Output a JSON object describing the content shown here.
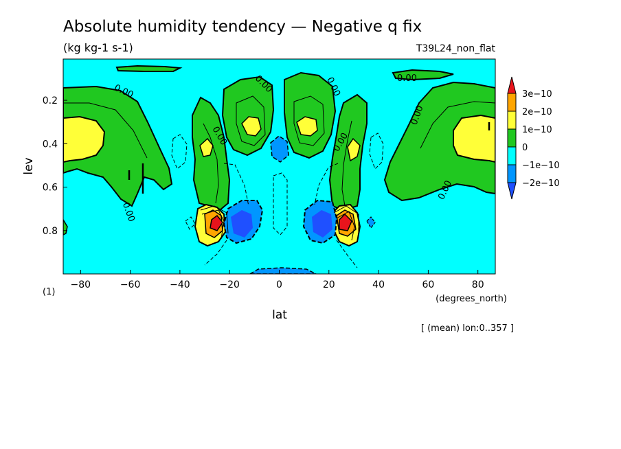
{
  "chart_data": {
    "type": "contour",
    "title": "Absolute humidity tendency — Negative q fix",
    "units": "(kg kg-1 s-1)",
    "experiment": "T39L24_non_flat",
    "xlabel": "lat",
    "x_units": "(degrees_north)",
    "ylabel": "lev",
    "y_units": "(1)",
    "note": "[ (mean) lon:0..357 ]",
    "xlim": [
      -87,
      87
    ],
    "ylim": [
      1.0,
      0.01
    ],
    "x_ticks": [
      -80,
      -60,
      -40,
      -20,
      0,
      20,
      40,
      60,
      80
    ],
    "x_tick_labels": [
      "−80",
      "−60",
      "−40",
      "−20",
      "0",
      "20",
      "40",
      "60",
      "80"
    ],
    "y_ticks": [
      0.2,
      0.4,
      0.6,
      0.8
    ],
    "y_tick_labels": [
      "0.2",
      "0.4",
      "0.6",
      "0.8"
    ],
    "contour_label": "0.00",
    "legend": {
      "levels": [
        "3e−10",
        "2e−10",
        "1e−10",
        "0",
        "−1e−10",
        "−2e−10"
      ],
      "colors": [
        "#e8141c",
        "#ffa500",
        "#ffff38",
        "#20c820",
        "#00ffff",
        "#0096ff",
        "#1f50ff"
      ]
    },
    "features": [
      {
        "lat": -80,
        "lev": 0.38,
        "value": "1e-10"
      },
      {
        "lat": 80,
        "lev": 0.38,
        "value": "1e-10"
      },
      {
        "lat": -27,
        "lev": 0.77,
        "value": "3e-10"
      },
      {
        "lat": 27,
        "lev": 0.77,
        "value": "3e-10"
      },
      {
        "lat": -18,
        "lev": 0.78,
        "value": "-2e-10"
      },
      {
        "lat": 17,
        "lev": 0.78,
        "value": "-2e-10"
      },
      {
        "lat": -11,
        "lev": 0.31,
        "value": "1e-10"
      },
      {
        "lat": 12,
        "lev": 0.31,
        "value": "1e-10"
      }
    ]
  }
}
